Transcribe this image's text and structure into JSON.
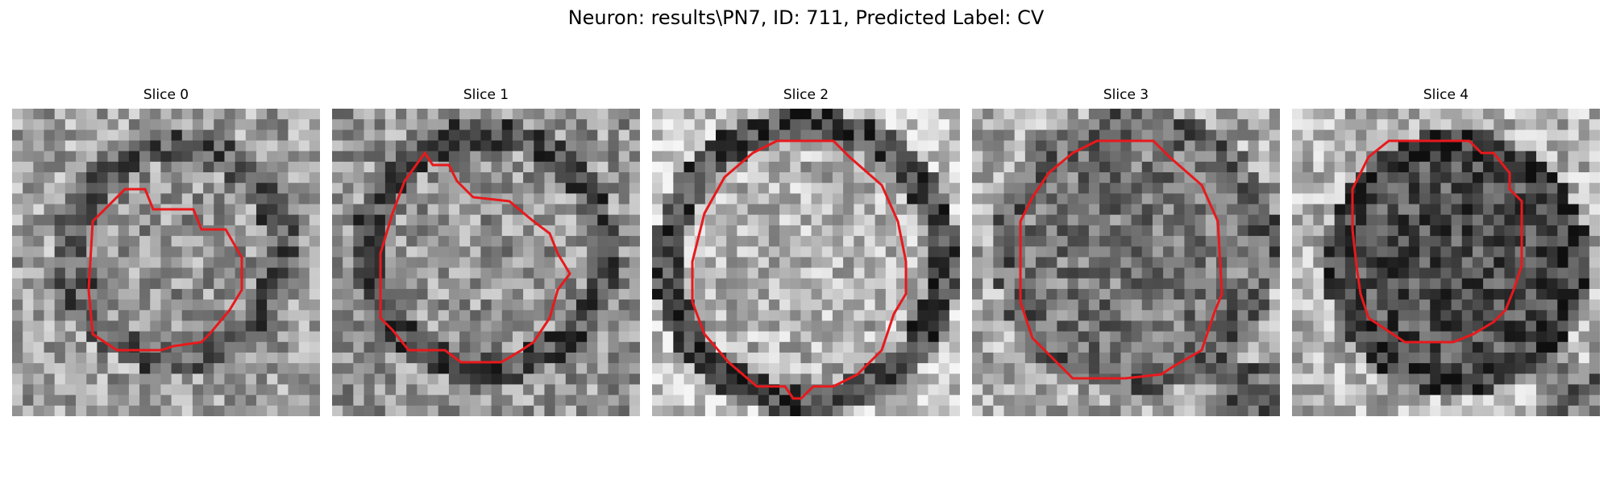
{
  "figure": {
    "title": "Neuron: results\\PN7, ID: 711, Predicted Label: CV",
    "contour_color": "#e8191c",
    "colormap": "gray",
    "panels": [
      {
        "title": "Slice 0"
      },
      {
        "title": "Slice 1"
      },
      {
        "title": "Slice 2"
      },
      {
        "title": "Slice 3"
      },
      {
        "title": "Slice 4"
      }
    ]
  }
}
